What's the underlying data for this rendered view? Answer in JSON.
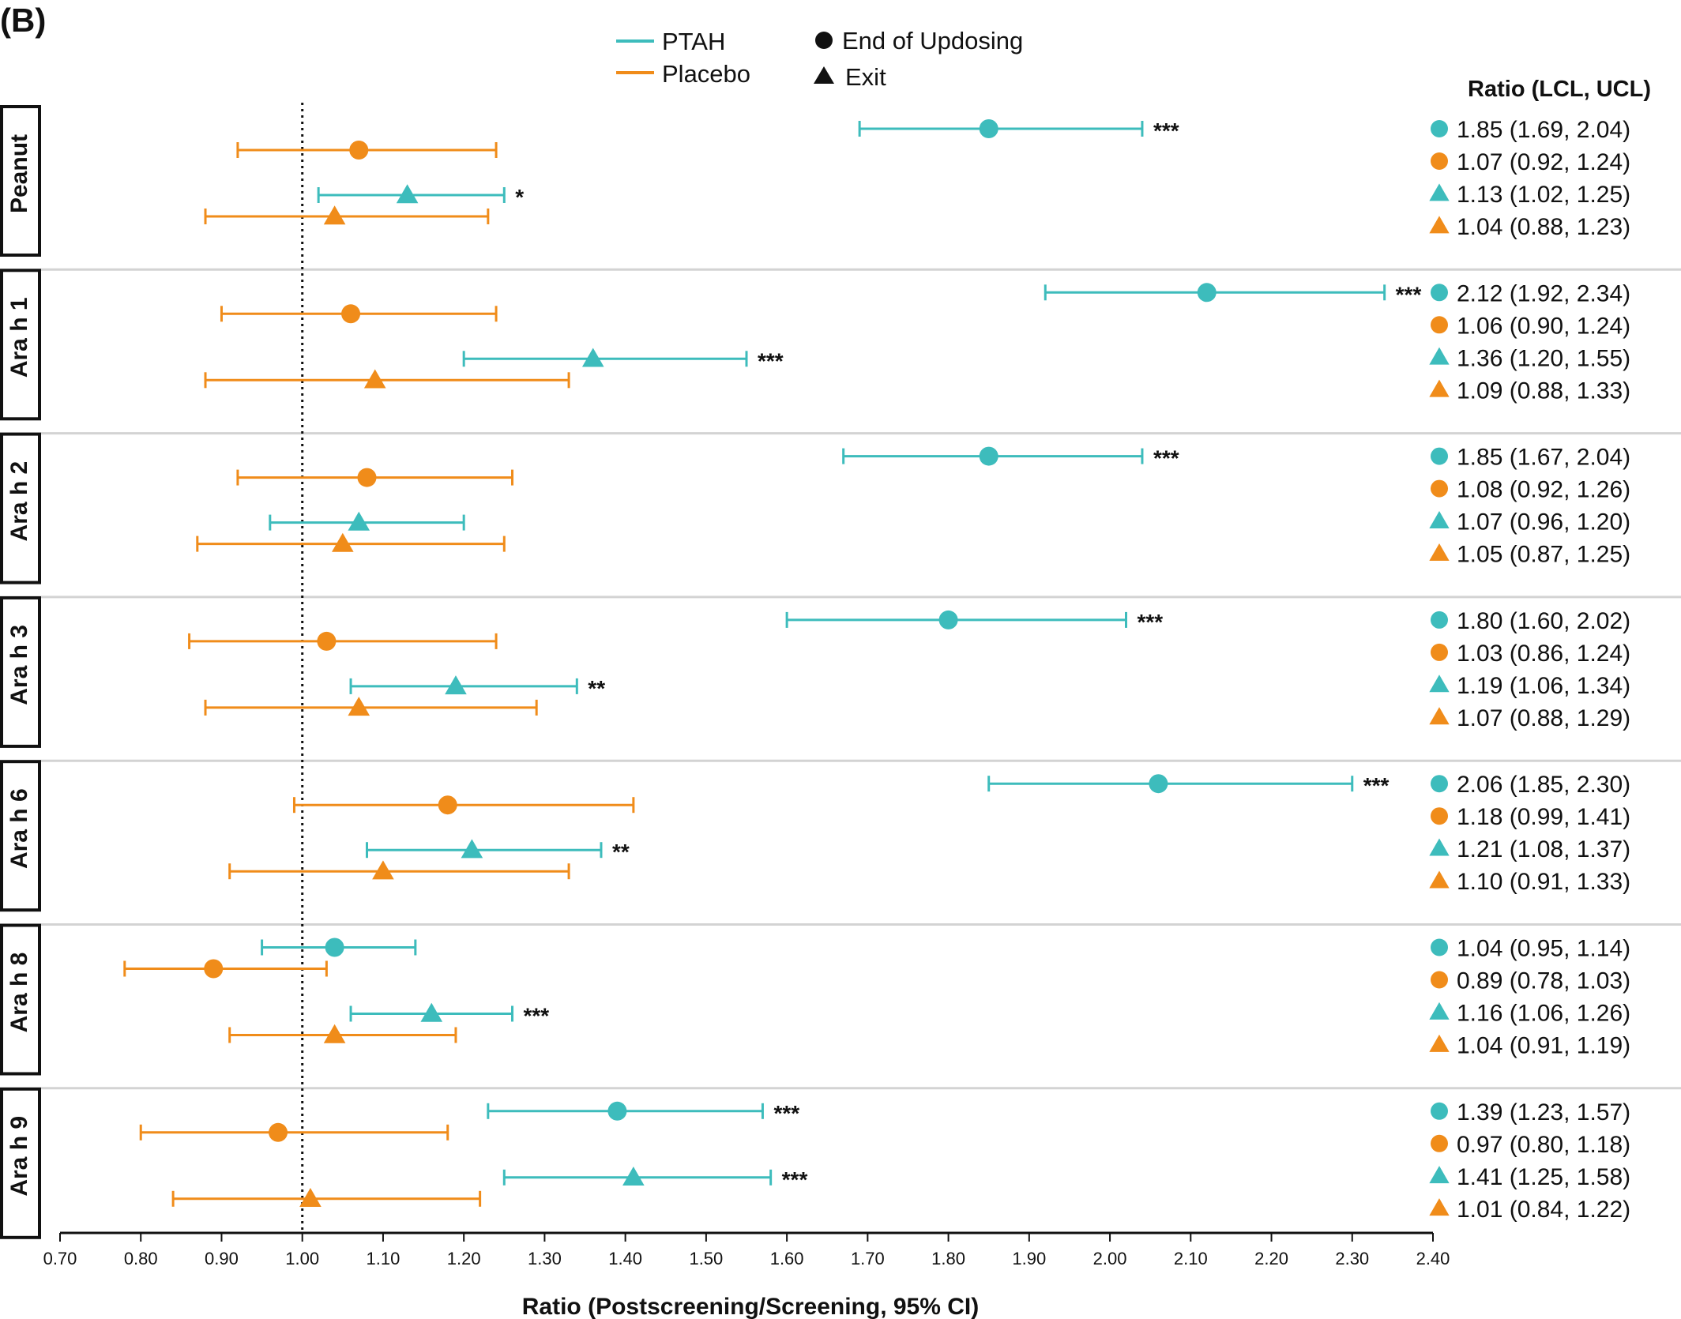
{
  "panel_label": "(B)",
  "colors": {
    "ptah": "#3dbcbc",
    "placebo": "#f08c1a",
    "separator": "#d3d3d3",
    "axis": "#111111"
  },
  "legend": {
    "series": [
      "PTAH",
      "Placebo"
    ],
    "markers": [
      "End of Updosing",
      "Exit"
    ],
    "ratio_header": "Ratio (LCL, UCL)"
  },
  "chart_data": {
    "type": "scatter",
    "xlabel": "Ratio (Postscreening/Screening, 95% CI)",
    "xlim": [
      0.7,
      2.4
    ],
    "xticks": [
      "0.70",
      "0.80",
      "0.90",
      "1.00",
      "1.10",
      "1.20",
      "1.30",
      "1.40",
      "1.50",
      "1.60",
      "1.70",
      "1.80",
      "1.90",
      "2.00",
      "2.10",
      "2.20",
      "2.30",
      "2.40"
    ],
    "reference_line": 1.0,
    "grid": false,
    "legend_position": "top",
    "groups": [
      {
        "name": "Peanut",
        "rows": [
          {
            "series": "PTAH",
            "timepoint": "End of Updosing",
            "ratio": 1.85,
            "lcl": 1.69,
            "ucl": 2.04,
            "sig": "***",
            "label": "1.85 (1.69, 2.04)"
          },
          {
            "series": "Placebo",
            "timepoint": "End of Updosing",
            "ratio": 1.07,
            "lcl": 0.92,
            "ucl": 1.24,
            "sig": "",
            "label": "1.07 (0.92, 1.24)"
          },
          {
            "series": "PTAH",
            "timepoint": "Exit",
            "ratio": 1.13,
            "lcl": 1.02,
            "ucl": 1.25,
            "sig": "*",
            "label": "1.13 (1.02, 1.25)"
          },
          {
            "series": "Placebo",
            "timepoint": "Exit",
            "ratio": 1.04,
            "lcl": 0.88,
            "ucl": 1.23,
            "sig": "",
            "label": "1.04 (0.88, 1.23)"
          }
        ]
      },
      {
        "name": "Ara h 1",
        "rows": [
          {
            "series": "PTAH",
            "timepoint": "End of Updosing",
            "ratio": 2.12,
            "lcl": 1.92,
            "ucl": 2.34,
            "sig": "***",
            "label": "2.12 (1.92, 2.34)"
          },
          {
            "series": "Placebo",
            "timepoint": "End of Updosing",
            "ratio": 1.06,
            "lcl": 0.9,
            "ucl": 1.24,
            "sig": "",
            "label": "1.06 (0.90, 1.24)"
          },
          {
            "series": "PTAH",
            "timepoint": "Exit",
            "ratio": 1.36,
            "lcl": 1.2,
            "ucl": 1.55,
            "sig": "***",
            "label": "1.36 (1.20, 1.55)"
          },
          {
            "series": "Placebo",
            "timepoint": "Exit",
            "ratio": 1.09,
            "lcl": 0.88,
            "ucl": 1.33,
            "sig": "",
            "label": "1.09 (0.88, 1.33)"
          }
        ]
      },
      {
        "name": "Ara h 2",
        "rows": [
          {
            "series": "PTAH",
            "timepoint": "End of Updosing",
            "ratio": 1.85,
            "lcl": 1.67,
            "ucl": 2.04,
            "sig": "***",
            "label": "1.85 (1.67, 2.04)"
          },
          {
            "series": "Placebo",
            "timepoint": "End of Updosing",
            "ratio": 1.08,
            "lcl": 0.92,
            "ucl": 1.26,
            "sig": "",
            "label": "1.08 (0.92, 1.26)"
          },
          {
            "series": "PTAH",
            "timepoint": "Exit",
            "ratio": 1.07,
            "lcl": 0.96,
            "ucl": 1.2,
            "sig": "",
            "label": "1.07 (0.96, 1.20)"
          },
          {
            "series": "Placebo",
            "timepoint": "Exit",
            "ratio": 1.05,
            "lcl": 0.87,
            "ucl": 1.25,
            "sig": "",
            "label": "1.05 (0.87, 1.25)"
          }
        ]
      },
      {
        "name": "Ara h 3",
        "rows": [
          {
            "series": "PTAH",
            "timepoint": "End of Updosing",
            "ratio": 1.8,
            "lcl": 1.6,
            "ucl": 2.02,
            "sig": "***",
            "label": "1.80 (1.60, 2.02)"
          },
          {
            "series": "Placebo",
            "timepoint": "End of Updosing",
            "ratio": 1.03,
            "lcl": 0.86,
            "ucl": 1.24,
            "sig": "",
            "label": "1.03 (0.86, 1.24)"
          },
          {
            "series": "PTAH",
            "timepoint": "Exit",
            "ratio": 1.19,
            "lcl": 1.06,
            "ucl": 1.34,
            "sig": "**",
            "label": "1.19 (1.06, 1.34)"
          },
          {
            "series": "Placebo",
            "timepoint": "Exit",
            "ratio": 1.07,
            "lcl": 0.88,
            "ucl": 1.29,
            "sig": "",
            "label": "1.07 (0.88, 1.29)"
          }
        ]
      },
      {
        "name": "Ara h 6",
        "rows": [
          {
            "series": "PTAH",
            "timepoint": "End of Updosing",
            "ratio": 2.06,
            "lcl": 1.85,
            "ucl": 2.3,
            "sig": "***",
            "label": "2.06 (1.85, 2.30)"
          },
          {
            "series": "Placebo",
            "timepoint": "End of Updosing",
            "ratio": 1.18,
            "lcl": 0.99,
            "ucl": 1.41,
            "sig": "",
            "label": "1.18 (0.99, 1.41)"
          },
          {
            "series": "PTAH",
            "timepoint": "Exit",
            "ratio": 1.21,
            "lcl": 1.08,
            "ucl": 1.37,
            "sig": "**",
            "label": "1.21 (1.08, 1.37)"
          },
          {
            "series": "Placebo",
            "timepoint": "Exit",
            "ratio": 1.1,
            "lcl": 0.91,
            "ucl": 1.33,
            "sig": "",
            "label": "1.10 (0.91, 1.33)"
          }
        ]
      },
      {
        "name": "Ara h 8",
        "rows": [
          {
            "series": "PTAH",
            "timepoint": "End of Updosing",
            "ratio": 1.04,
            "lcl": 0.95,
            "ucl": 1.14,
            "sig": "",
            "label": "1.04 (0.95, 1.14)"
          },
          {
            "series": "Placebo",
            "timepoint": "End of Updosing",
            "ratio": 0.89,
            "lcl": 0.78,
            "ucl": 1.03,
            "sig": "",
            "label": "0.89 (0.78, 1.03)"
          },
          {
            "series": "PTAH",
            "timepoint": "Exit",
            "ratio": 1.16,
            "lcl": 1.06,
            "ucl": 1.26,
            "sig": "***",
            "label": "1.16 (1.06, 1.26)"
          },
          {
            "series": "Placebo",
            "timepoint": "Exit",
            "ratio": 1.04,
            "lcl": 0.91,
            "ucl": 1.19,
            "sig": "",
            "label": "1.04 (0.91, 1.19)"
          }
        ]
      },
      {
        "name": "Ara h 9",
        "rows": [
          {
            "series": "PTAH",
            "timepoint": "End of Updosing",
            "ratio": 1.39,
            "lcl": 1.23,
            "ucl": 1.57,
            "sig": "***",
            "label": "1.39 (1.23, 1.57)"
          },
          {
            "series": "Placebo",
            "timepoint": "End of Updosing",
            "ratio": 0.97,
            "lcl": 0.8,
            "ucl": 1.18,
            "sig": "",
            "label": "0.97 (0.80, 1.18)"
          },
          {
            "series": "PTAH",
            "timepoint": "Exit",
            "ratio": 1.41,
            "lcl": 1.25,
            "ucl": 1.58,
            "sig": "***",
            "label": "1.41 (1.25, 1.58)"
          },
          {
            "series": "Placebo",
            "timepoint": "Exit",
            "ratio": 1.01,
            "lcl": 0.84,
            "ucl": 1.22,
            "sig": "",
            "label": "1.01 (0.84, 1.22)"
          }
        ]
      }
    ]
  }
}
